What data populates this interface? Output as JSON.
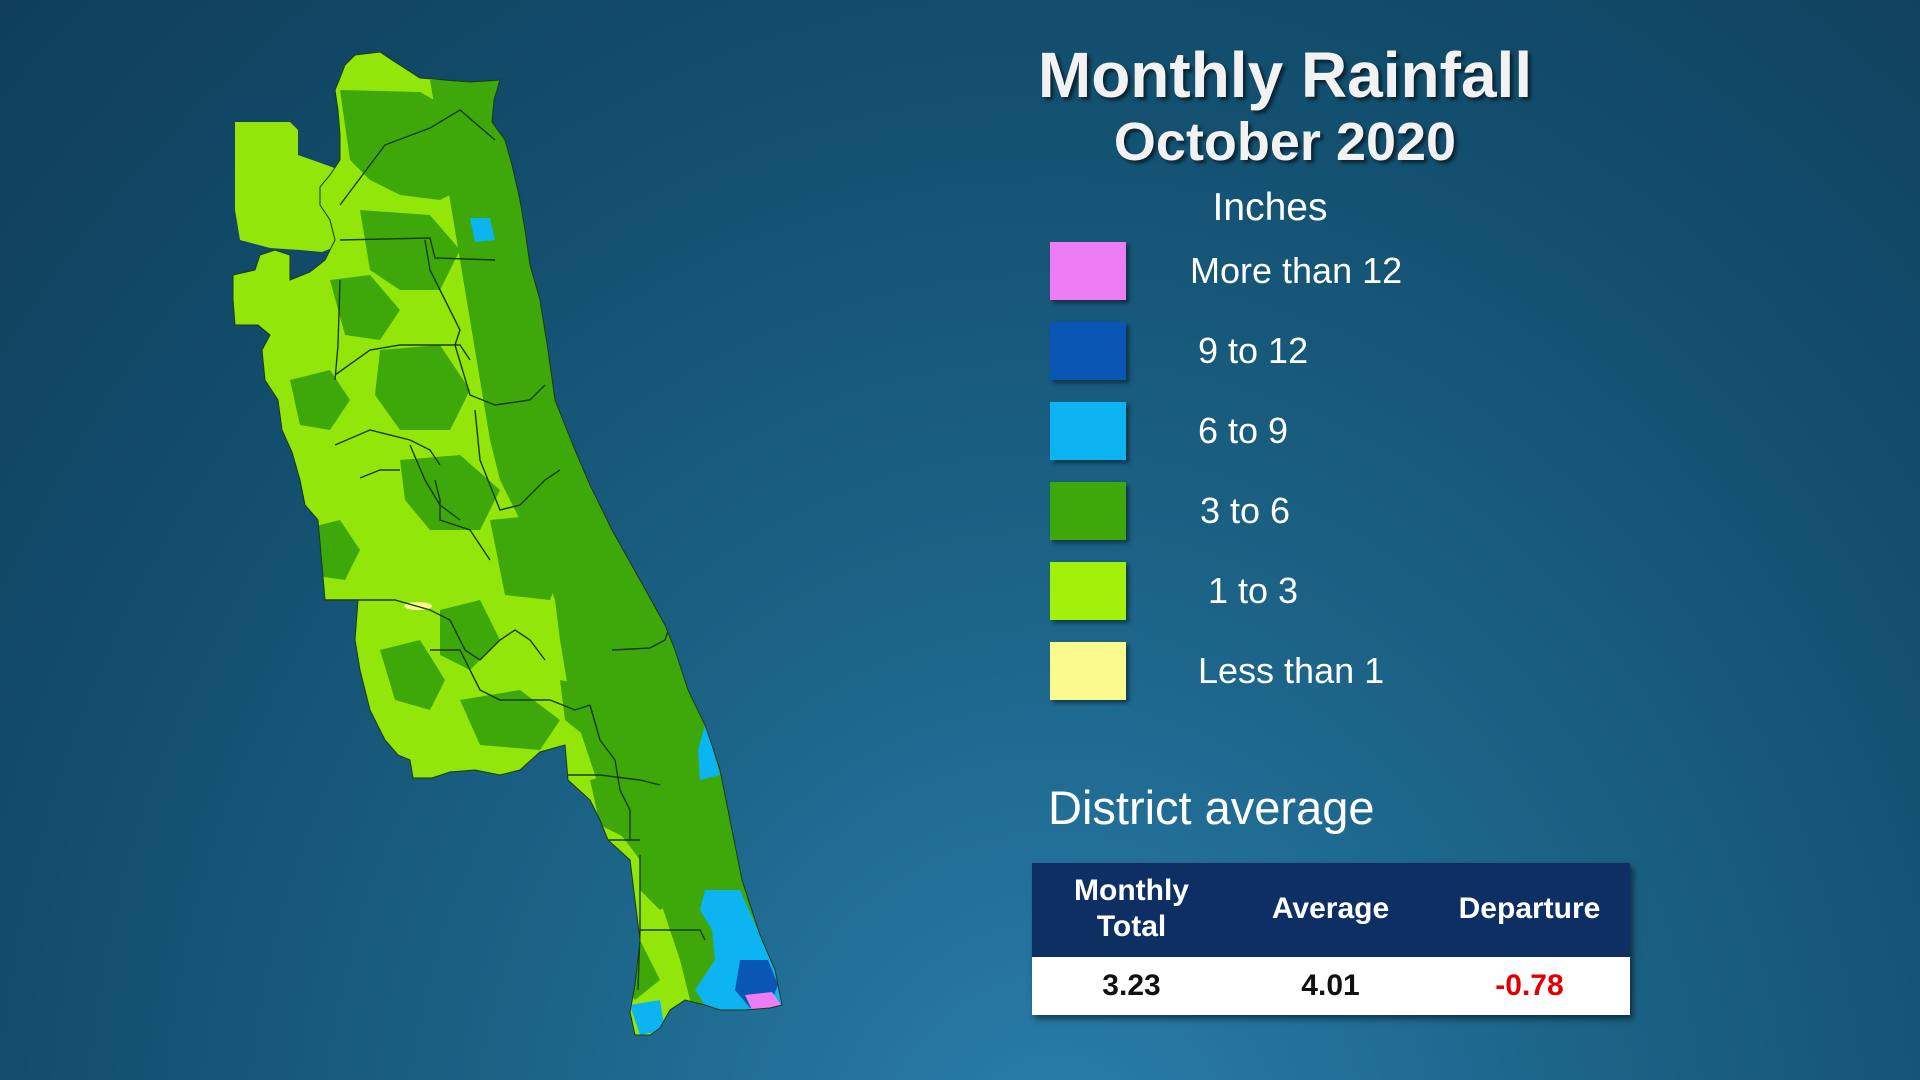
{
  "title": "Monthly Rainfall",
  "subtitle": "October 2020",
  "legend": {
    "title": "Inches",
    "items": [
      {
        "label": "More than 12",
        "color": "#ee7df5"
      },
      {
        "label": "9 to 12",
        "color": "#0a56b5"
      },
      {
        "label": "6 to 9",
        "color": "#0db4f2"
      },
      {
        "label": "3 to 6",
        "color": "#3ea80a"
      },
      {
        "label": "1 to 3",
        "color": "#a3f00a"
      },
      {
        "label": "Less than 1",
        "color": "#fafa8f"
      }
    ]
  },
  "map_colors": {
    "light_green": "#93e60a",
    "dark_green": "#3ea80a",
    "light_blue": "#0db4f2",
    "dark_blue": "#0a56b5",
    "pink": "#ee7df5",
    "yellow": "#fafa8f",
    "border": "#1a3a1a"
  },
  "district": {
    "label": "District average",
    "headers": [
      "Monthly Total",
      "Average",
      "Departure"
    ],
    "header_lines": [
      [
        "Monthly",
        "Total"
      ],
      [
        "Average"
      ],
      [
        "Departure"
      ]
    ],
    "values": [
      "3.23",
      "4.01",
      "-0.78"
    ]
  }
}
